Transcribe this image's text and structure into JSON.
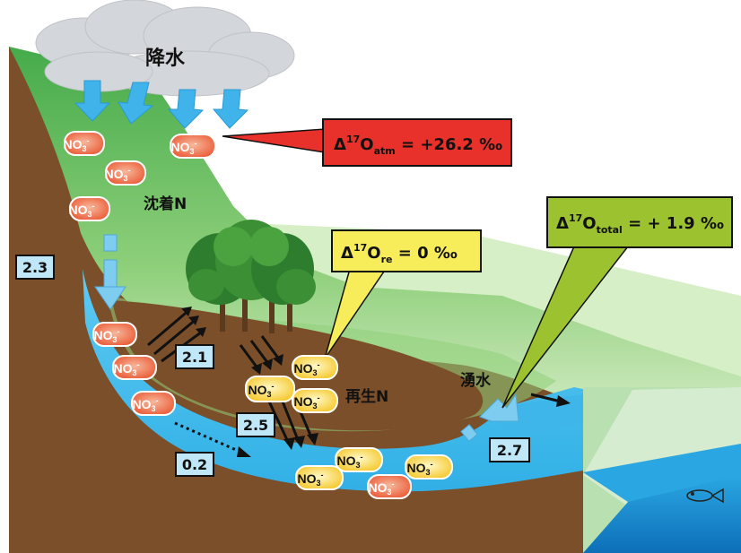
{
  "labels": {
    "precipitation": "降水",
    "deposited_n": "沈着N",
    "regenerated_n": "再生N",
    "spring_water": "湧水"
  },
  "callouts": {
    "atm": {
      "prefix": "Δ",
      "sup": "17",
      "o": "O",
      "sub": "atm",
      "value": " = +26.2 ‰",
      "color": "#e8312a"
    },
    "re": {
      "prefix": "Δ",
      "sup": "17",
      "o": "O",
      "sub": "re",
      "value": " = 0 ‰",
      "color": "#f7ec5a"
    },
    "total": {
      "prefix": "Δ",
      "sup": "17",
      "o": "O",
      "sub": "total",
      "value": " = + 1.9 ‰",
      "color": "#9dc22f"
    }
  },
  "flux_values": {
    "v1": "2.3",
    "v2": "2.1",
    "v3": "2.5",
    "v4": "0.2",
    "v5": "2.7"
  },
  "nitrate": {
    "base": "NO",
    "sub": "3",
    "sup": "-"
  }
}
